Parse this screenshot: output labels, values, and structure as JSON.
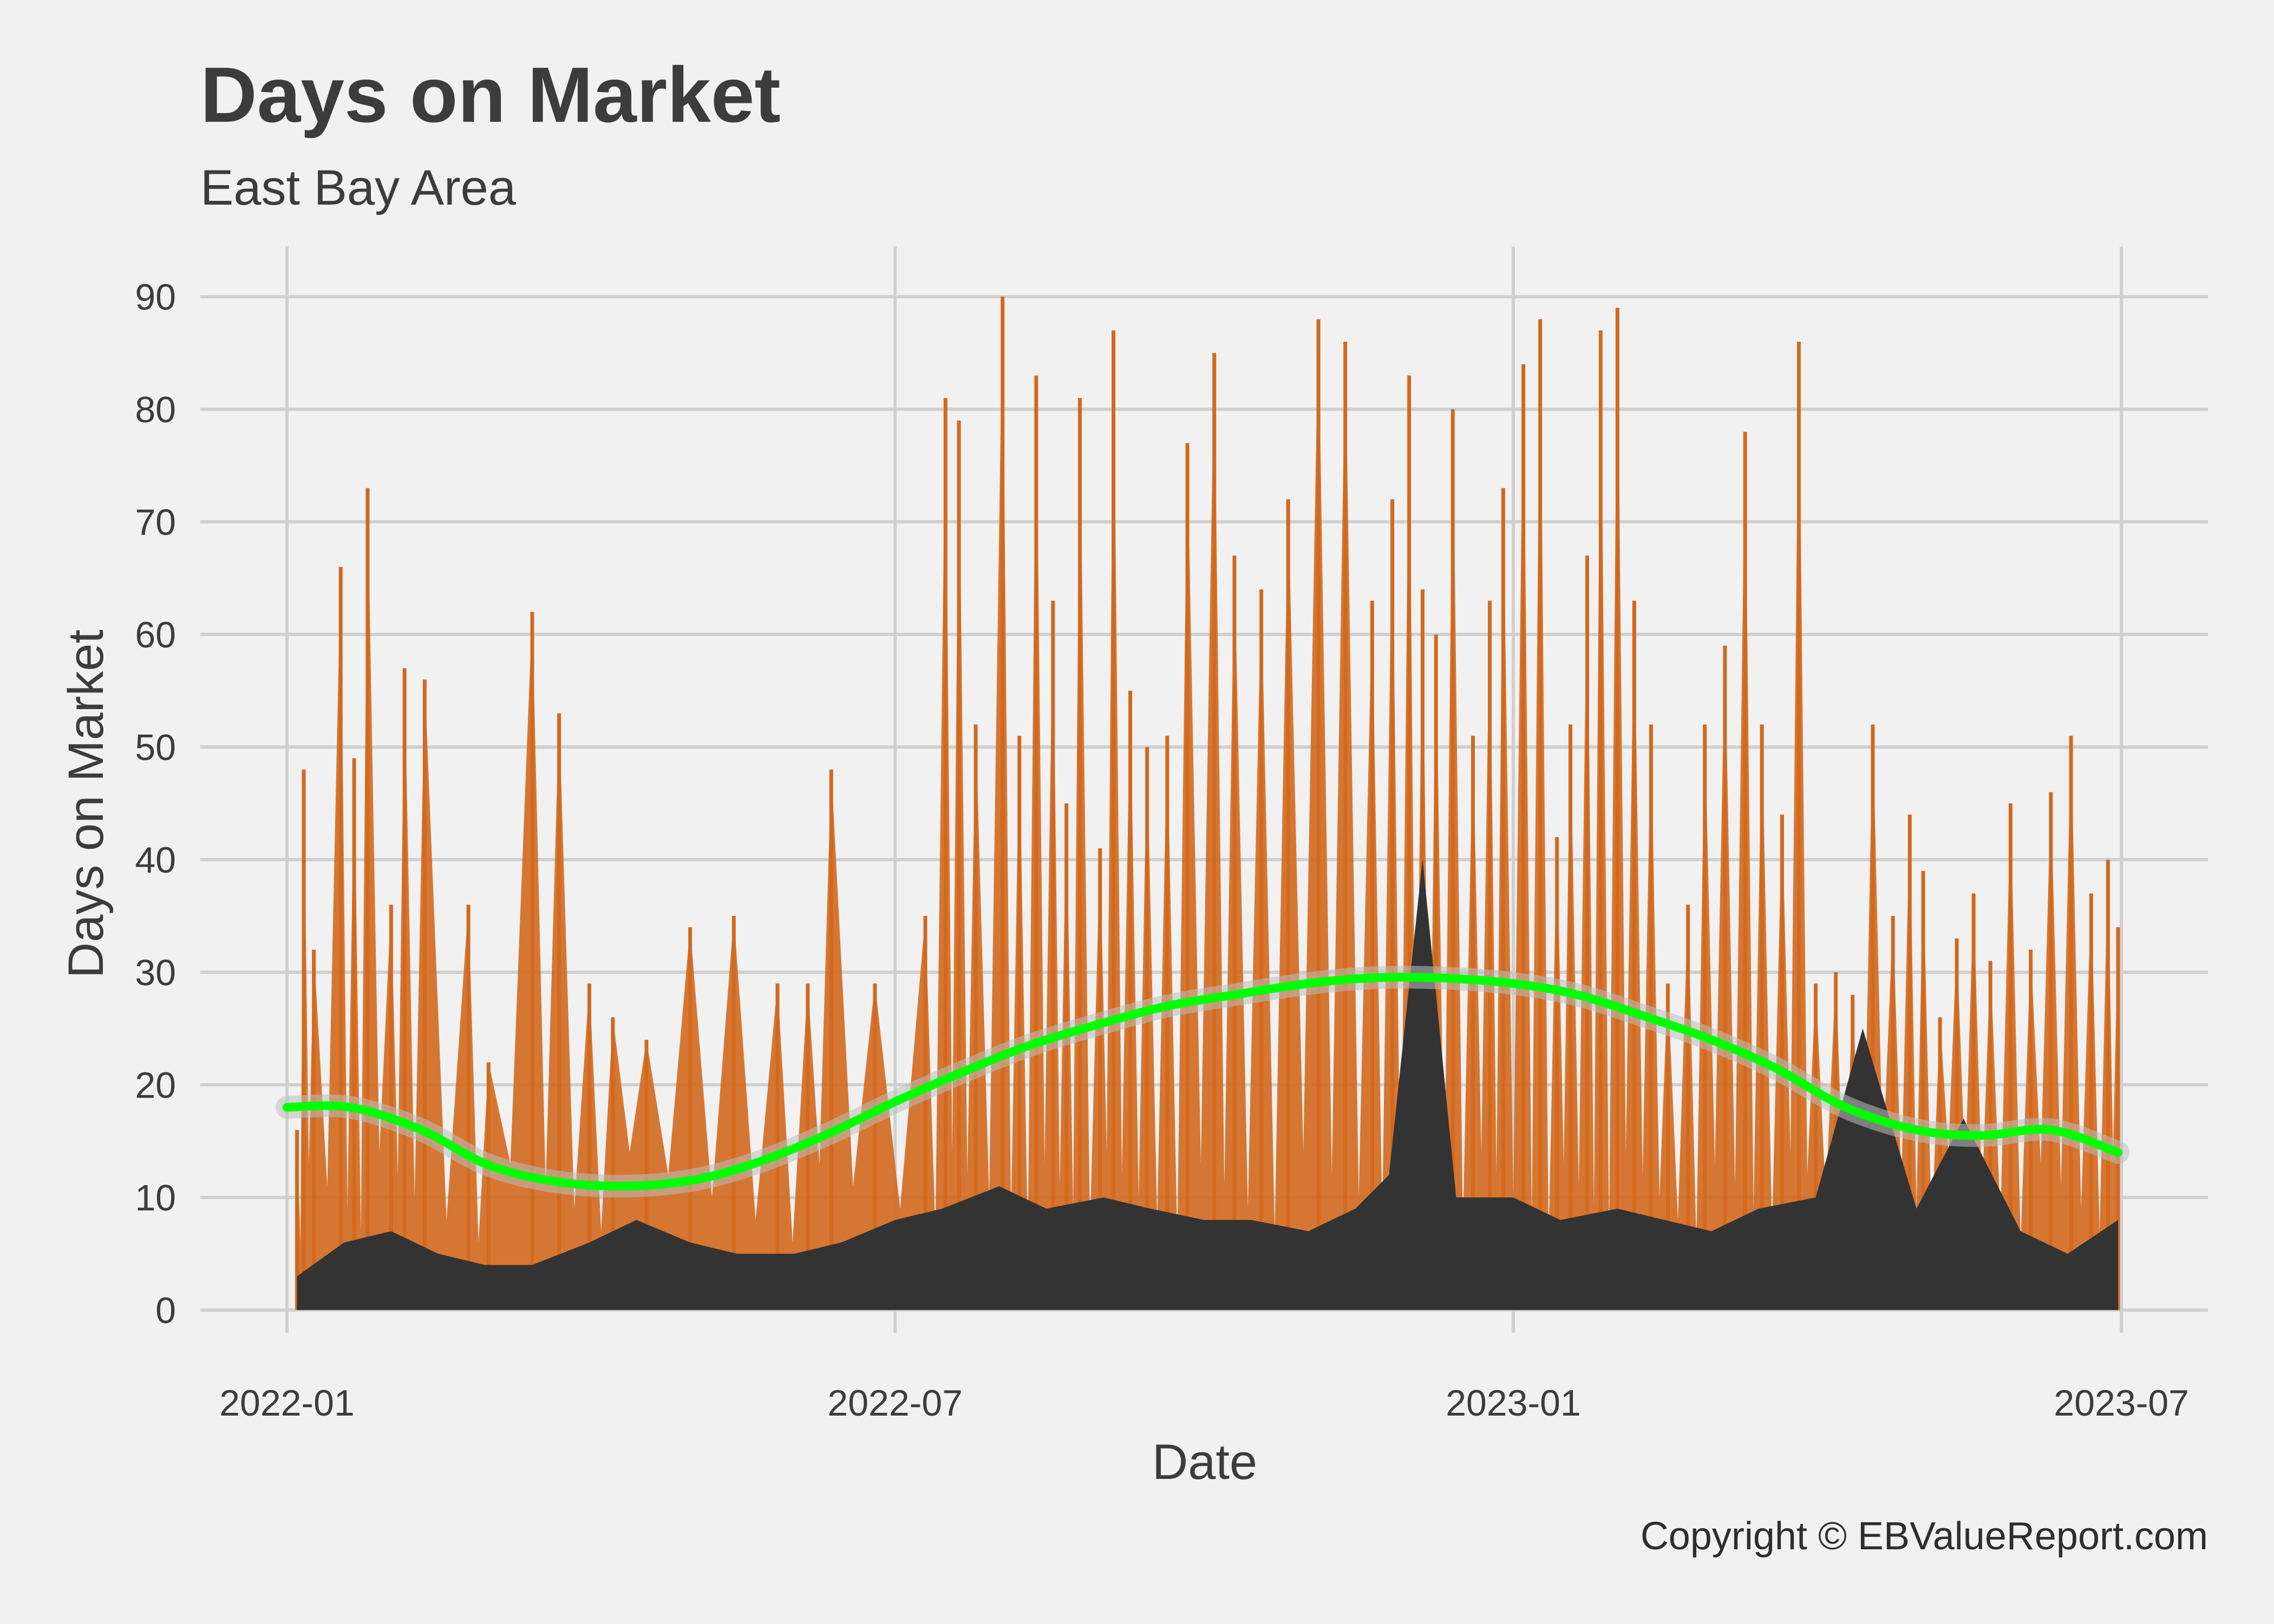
{
  "chart_data": {
    "type": "line",
    "title": "Days on Market",
    "subtitle": "East Bay Area",
    "xlabel": "Date",
    "ylabel": "Days on Market",
    "caption": "Copyright  © EBValueReport.com",
    "x_domain": [
      "2022-01-01",
      "2023-06-30"
    ],
    "x_ticks": [
      "2022-01",
      "2022-07",
      "2023-01",
      "2023-07"
    ],
    "ylim": [
      0,
      90
    ],
    "y_ticks": [
      "0",
      "10",
      "20",
      "30",
      "40",
      "50",
      "60",
      "70",
      "80",
      "90"
    ],
    "grid": true,
    "colors": {
      "background": "#f1f1f1",
      "max_series": "#d2691e",
      "min_series": "#333333",
      "trend": "#00ff00",
      "trend_band": "#bdbdbd",
      "grid": "#d0d0d0",
      "text": "#3c3c3c"
    },
    "series": [
      {
        "role": "max",
        "x": [
          "2022-01-04",
          "2022-01-06",
          "2022-01-09",
          "2022-01-17",
          "2022-01-21",
          "2022-01-25",
          "2022-02-01",
          "2022-02-05",
          "2022-02-11",
          "2022-02-24",
          "2022-03-02",
          "2022-03-15",
          "2022-03-23",
          "2022-04-01",
          "2022-04-08",
          "2022-04-18",
          "2022-05-01",
          "2022-05-14",
          "2022-05-27",
          "2022-06-05",
          "2022-06-12",
          "2022-06-25",
          "2022-07-10",
          "2022-07-16",
          "2022-07-20",
          "2022-07-25",
          "2022-08-02",
          "2022-08-07",
          "2022-08-12",
          "2022-08-17",
          "2022-08-21",
          "2022-08-25",
          "2022-08-31",
          "2022-09-04",
          "2022-09-09",
          "2022-09-14",
          "2022-09-20",
          "2022-09-26",
          "2022-10-04",
          "2022-10-10",
          "2022-10-18",
          "2022-10-26",
          "2022-11-04",
          "2022-11-12",
          "2022-11-20",
          "2022-11-26",
          "2022-12-01",
          "2022-12-05",
          "2022-12-09",
          "2022-12-14",
          "2022-12-20",
          "2022-12-25",
          "2022-12-29",
          "2023-01-04",
          "2023-01-09",
          "2023-01-14",
          "2023-01-18",
          "2023-01-23",
          "2023-01-27",
          "2023-02-01",
          "2023-02-06",
          "2023-02-11",
          "2023-02-16",
          "2023-02-22",
          "2023-02-27",
          "2023-03-05",
          "2023-03-11",
          "2023-03-16",
          "2023-03-22",
          "2023-03-27",
          "2023-04-01",
          "2023-04-07",
          "2023-04-12",
          "2023-04-18",
          "2023-04-24",
          "2023-04-29",
          "2023-05-03",
          "2023-05-08",
          "2023-05-13",
          "2023-05-18",
          "2023-05-23",
          "2023-05-29",
          "2023-06-04",
          "2023-06-10",
          "2023-06-16",
          "2023-06-22",
          "2023-06-27",
          "2023-06-30"
        ],
        "y": [
          16,
          48,
          32,
          66,
          49,
          73,
          36,
          57,
          56,
          36,
          22,
          62,
          53,
          29,
          26,
          24,
          34,
          35,
          29,
          29,
          48,
          29,
          35,
          81,
          79,
          52,
          90,
          51,
          83,
          63,
          45,
          81,
          41,
          87,
          55,
          50,
          51,
          77,
          85,
          67,
          64,
          72,
          88,
          86,
          63,
          72,
          83,
          64,
          60,
          80,
          51,
          63,
          73,
          84,
          88,
          42,
          52,
          67,
          87,
          89,
          63,
          52,
          29,
          36,
          52,
          59,
          78,
          52,
          44,
          86,
          29,
          30,
          28,
          52,
          35,
          44,
          39,
          26,
          33,
          37,
          31,
          45,
          32,
          46,
          51,
          37,
          40,
          34
        ]
      },
      {
        "role": "min",
        "x": [
          "2022-01-04",
          "2022-01-18",
          "2022-02-01",
          "2022-02-15",
          "2022-03-01",
          "2022-03-15",
          "2022-04-01",
          "2022-04-15",
          "2022-05-01",
          "2022-05-15",
          "2022-06-01",
          "2022-06-15",
          "2022-07-01",
          "2022-07-15",
          "2022-08-01",
          "2022-08-15",
          "2022-09-01",
          "2022-09-15",
          "2022-10-01",
          "2022-10-15",
          "2022-11-01",
          "2022-11-15",
          "2022-11-25",
          "2022-12-05",
          "2022-12-15",
          "2023-01-01",
          "2023-01-15",
          "2023-02-01",
          "2023-02-15",
          "2023-03-01",
          "2023-03-15",
          "2023-04-01",
          "2023-04-15",
          "2023-05-01",
          "2023-05-15",
          "2023-06-01",
          "2023-06-15",
          "2023-06-30"
        ],
        "y": [
          3,
          6,
          7,
          5,
          4,
          4,
          6,
          8,
          6,
          5,
          5,
          6,
          8,
          9,
          11,
          9,
          10,
          9,
          8,
          8,
          7,
          9,
          12,
          40,
          10,
          10,
          8,
          9,
          8,
          7,
          9,
          10,
          25,
          9,
          17,
          7,
          5,
          8
        ]
      },
      {
        "role": "trend",
        "x": [
          "2022-01-01",
          "2022-01-20",
          "2022-02-10",
          "2022-03-01",
          "2022-03-20",
          "2022-04-10",
          "2022-05-01",
          "2022-05-20",
          "2022-06-10",
          "2022-07-01",
          "2022-07-20",
          "2022-08-10",
          "2022-09-01",
          "2022-09-20",
          "2022-10-10",
          "2022-11-01",
          "2022-11-20",
          "2022-12-10",
          "2023-01-01",
          "2023-01-20",
          "2023-02-10",
          "2023-03-01",
          "2023-03-20",
          "2023-04-10",
          "2023-05-01",
          "2023-05-20",
          "2023-06-10",
          "2023-06-30"
        ],
        "y": [
          18,
          18,
          16,
          13,
          11.5,
          11,
          11.5,
          13,
          15.5,
          18.5,
          21,
          23.5,
          25.5,
          27,
          28,
          29,
          29.5,
          29.5,
          29,
          28,
          26,
          24,
          21.5,
          18,
          16,
          15.5,
          16,
          14
        ]
      }
    ]
  }
}
